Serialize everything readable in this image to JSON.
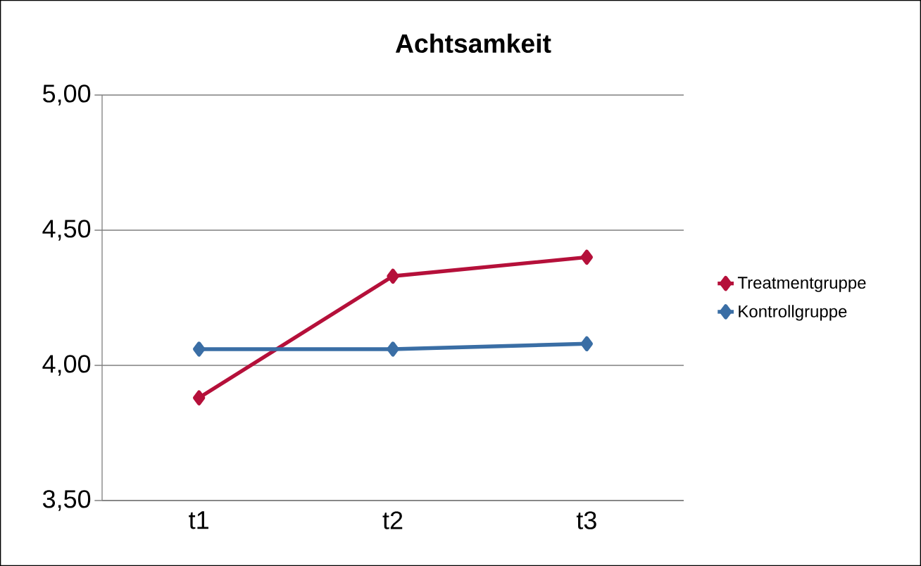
{
  "chart_data": {
    "type": "line",
    "title": "Achtsamkeit",
    "categories": [
      "t1",
      "t2",
      "t3"
    ],
    "series": [
      {
        "name": "Treatmentgruppe",
        "color": "#b5103a",
        "values": [
          3.88,
          4.33,
          4.4
        ]
      },
      {
        "name": "Kontrollgruppe",
        "color": "#3a6ea5",
        "values": [
          4.06,
          4.06,
          4.08
        ]
      }
    ],
    "ylim": [
      3.5,
      5.0
    ],
    "yticks": [
      {
        "value": 3.5,
        "label": "3,50"
      },
      {
        "value": 4.0,
        "label": "4,00"
      },
      {
        "value": 4.5,
        "label": "4,50"
      },
      {
        "value": 5.0,
        "label": "5,00"
      }
    ],
    "grid": "y",
    "legend": "right",
    "marker": "diamond",
    "line_style": "solid"
  }
}
